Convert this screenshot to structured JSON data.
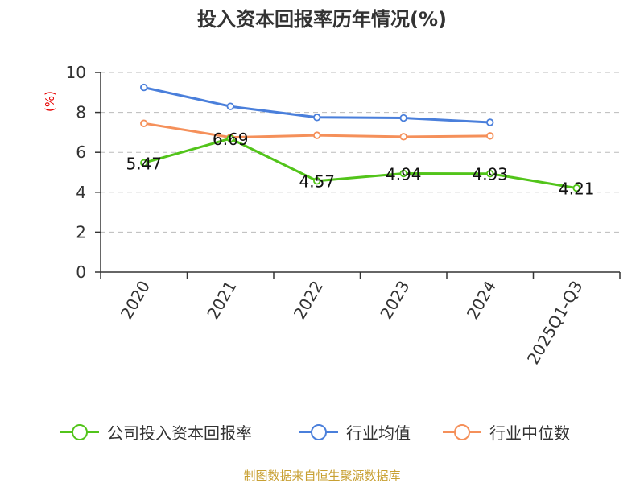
{
  "chart_data": {
    "type": "line",
    "title": "投入资本回报率历年情况(%)",
    "ylabel": "(%)",
    "xlabel": "",
    "categories": [
      "2020",
      "2021",
      "2022",
      "2023",
      "2024",
      "2025Q1-Q3"
    ],
    "ylim": [
      0,
      10
    ],
    "yticks": [
      "0",
      "2",
      "4",
      "6",
      "8",
      "10"
    ],
    "grid": "horizontal dashed",
    "legend_position": "bottom",
    "series": [
      {
        "name": "公司投入资本回报率",
        "color": "#52c41a",
        "labels": true,
        "values": [
          5.47,
          6.69,
          4.57,
          4.94,
          4.93,
          4.21
        ],
        "display": [
          "5.47",
          "6.69",
          "4.57",
          "4.94",
          "4.93",
          "4.21"
        ]
      },
      {
        "name": "行业均值",
        "color": "#4a7fdb",
        "labels": false,
        "values": [
          9.25,
          8.3,
          7.75,
          7.72,
          7.5,
          null
        ]
      },
      {
        "name": "行业中位数",
        "color": "#f5905a",
        "labels": false,
        "values": [
          7.45,
          6.75,
          6.85,
          6.78,
          6.82,
          null
        ]
      }
    ]
  },
  "source": "制图数据来自恒生聚源数据库"
}
